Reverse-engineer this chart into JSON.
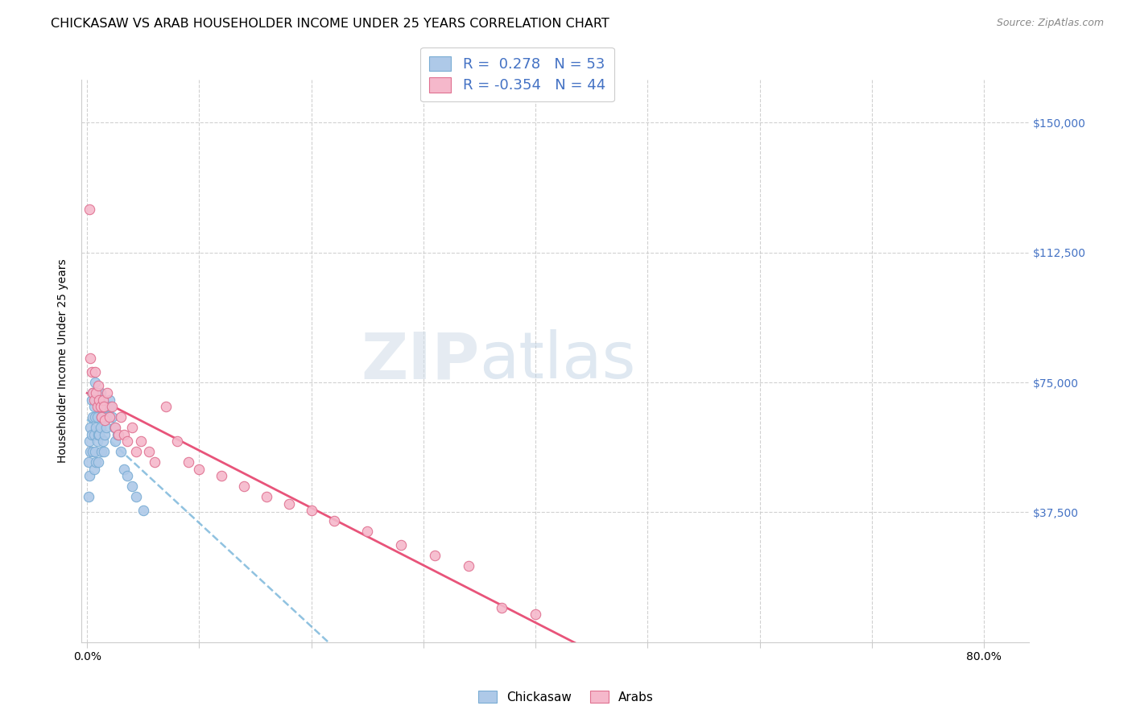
{
  "title": "CHICKASAW VS ARAB HOUSEHOLDER INCOME UNDER 25 YEARS CORRELATION CHART",
  "source": "Source: ZipAtlas.com",
  "ylabel": "Householder Income Under 25 years",
  "ytick_labels": [
    "$37,500",
    "$75,000",
    "$112,500",
    "$150,000"
  ],
  "ytick_values": [
    37500,
    75000,
    112500,
    150000
  ],
  "ymin": 0,
  "ymax": 162500,
  "xmin": -0.005,
  "xmax": 0.84,
  "r_chickasaw": 0.278,
  "n_chickasaw": 53,
  "r_arab": -0.354,
  "n_arab": 44,
  "chickasaw_color": "#aec9e8",
  "chickasaw_edge": "#7aadd4",
  "arab_color": "#f5b8cb",
  "arab_edge": "#e07090",
  "trendline_chickasaw_color": "#6baed6",
  "trendline_arab_color": "#e8547a",
  "title_fontsize": 11.5,
  "source_fontsize": 9,
  "axis_label_fontsize": 10,
  "tick_fontsize": 10,
  "legend_fontsize": 13,
  "chickasaw_x": [
    0.001,
    0.001,
    0.002,
    0.002,
    0.003,
    0.003,
    0.004,
    0.004,
    0.005,
    0.005,
    0.005,
    0.006,
    0.006,
    0.006,
    0.007,
    0.007,
    0.007,
    0.008,
    0.008,
    0.008,
    0.009,
    0.009,
    0.009,
    0.01,
    0.01,
    0.01,
    0.011,
    0.011,
    0.012,
    0.012,
    0.013,
    0.013,
    0.014,
    0.014,
    0.015,
    0.015,
    0.016,
    0.016,
    0.017,
    0.018,
    0.019,
    0.02,
    0.021,
    0.022,
    0.024,
    0.025,
    0.027,
    0.03,
    0.033,
    0.036,
    0.04,
    0.044,
    0.05
  ],
  "chickasaw_y": [
    52000,
    42000,
    58000,
    48000,
    62000,
    55000,
    70000,
    60000,
    65000,
    72000,
    55000,
    68000,
    60000,
    50000,
    75000,
    65000,
    55000,
    70000,
    62000,
    52000,
    72000,
    65000,
    58000,
    70000,
    60000,
    52000,
    68000,
    60000,
    72000,
    62000,
    65000,
    55000,
    68000,
    58000,
    65000,
    55000,
    68000,
    60000,
    62000,
    65000,
    68000,
    70000,
    68000,
    65000,
    62000,
    58000,
    60000,
    55000,
    50000,
    48000,
    45000,
    42000,
    38000
  ],
  "arab_x": [
    0.002,
    0.003,
    0.004,
    0.005,
    0.006,
    0.007,
    0.008,
    0.009,
    0.01,
    0.011,
    0.012,
    0.013,
    0.014,
    0.015,
    0.016,
    0.018,
    0.02,
    0.022,
    0.025,
    0.028,
    0.03,
    0.033,
    0.036,
    0.04,
    0.044,
    0.048,
    0.055,
    0.06,
    0.07,
    0.08,
    0.09,
    0.1,
    0.12,
    0.14,
    0.16,
    0.18,
    0.2,
    0.22,
    0.25,
    0.28,
    0.31,
    0.34,
    0.37,
    0.4
  ],
  "arab_y": [
    125000,
    82000,
    78000,
    72000,
    70000,
    78000,
    72000,
    68000,
    74000,
    70000,
    68000,
    65000,
    70000,
    68000,
    64000,
    72000,
    65000,
    68000,
    62000,
    60000,
    65000,
    60000,
    58000,
    62000,
    55000,
    58000,
    55000,
    52000,
    68000,
    58000,
    52000,
    50000,
    48000,
    45000,
    42000,
    40000,
    38000,
    35000,
    32000,
    28000,
    25000,
    22000,
    10000,
    8000
  ]
}
